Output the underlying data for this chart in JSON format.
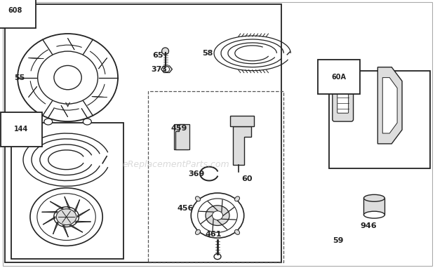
{
  "background_color": "#ffffff",
  "watermark": "eReplacementParts.com",
  "fig_w": 6.2,
  "fig_h": 3.82,
  "dpi": 100
}
